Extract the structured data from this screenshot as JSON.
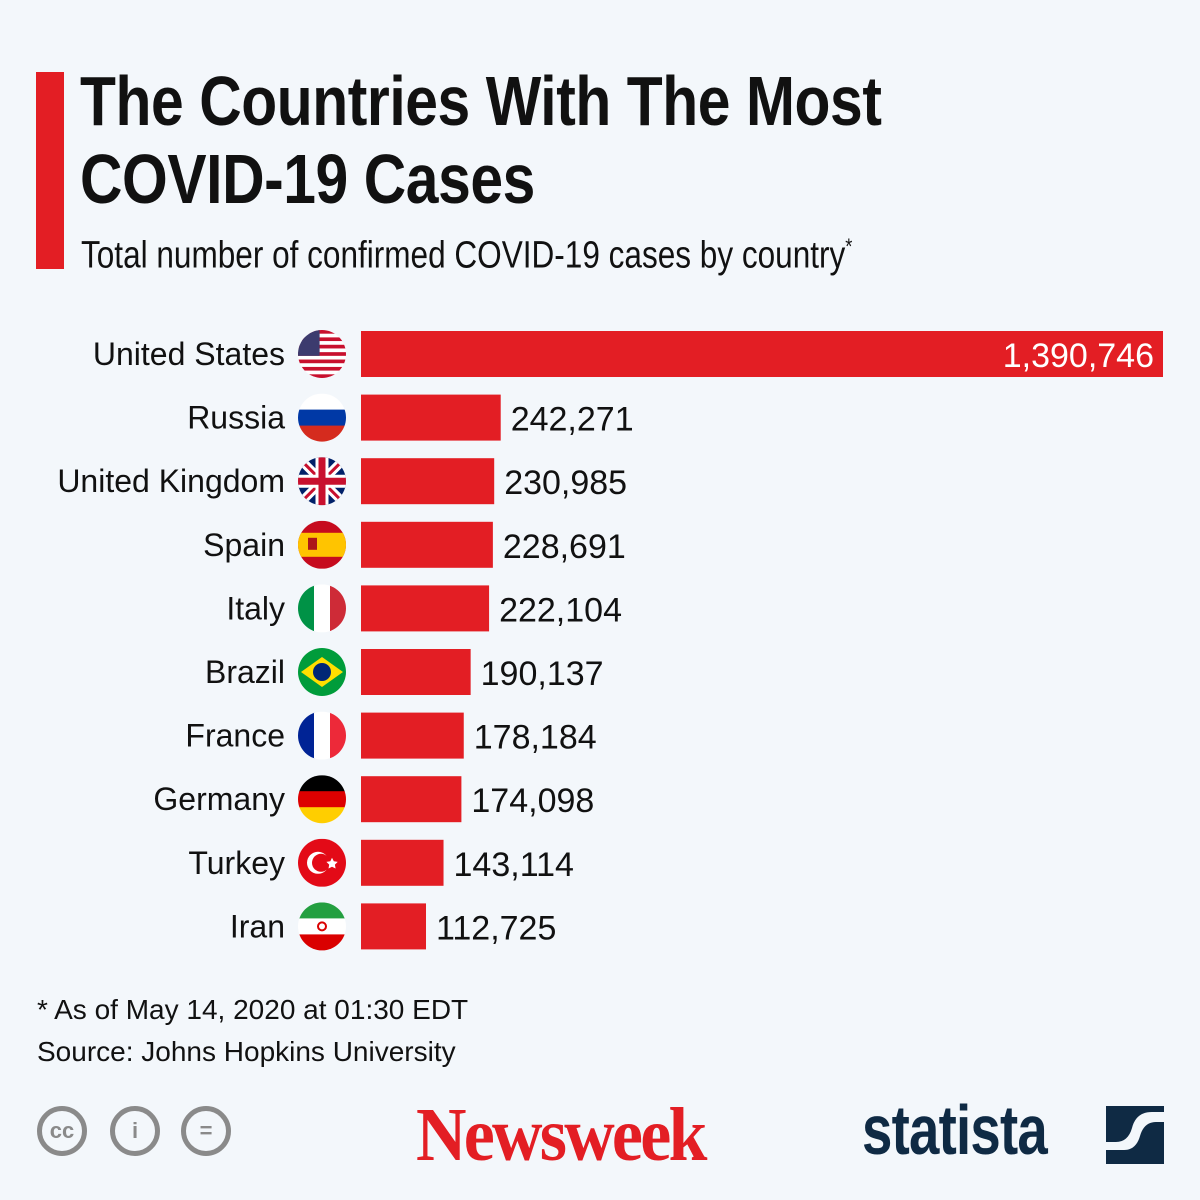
{
  "chart_data": {
    "type": "bar",
    "orientation": "horizontal",
    "title": "The Countries With The Most COVID-19 Cases",
    "subtitle": "Total number of confirmed COVID-19 cases by country",
    "subtitle_mark": "*",
    "categories": [
      "United States",
      "Russia",
      "United Kingdom",
      "Spain",
      "Italy",
      "Brazil",
      "France",
      "Germany",
      "Turkey",
      "Iran"
    ],
    "values": [
      1390746,
      242271,
      230985,
      228691,
      222104,
      190137,
      178184,
      174098,
      143114,
      112725
    ],
    "value_labels": [
      "1,390,746",
      "242,271",
      "230,985",
      "228,691",
      "222,104",
      "190,137",
      "178,184",
      "174,098",
      "143,114",
      "112,725"
    ],
    "flags": [
      "us-flag-icon",
      "russia-flag-icon",
      "uk-flag-icon",
      "spain-flag-icon",
      "italy-flag-icon",
      "brazil-flag-icon",
      "france-flag-icon",
      "germany-flag-icon",
      "turkey-flag-icon",
      "iran-flag-icon"
    ],
    "xlim": [
      0,
      1390746
    ],
    "grid": false,
    "bar_color": "#e31e24"
  },
  "footer": {
    "note": "* As of May 14, 2020 at 01:30 EDT",
    "source": "Source: Johns Hopkins University"
  },
  "license_icons": [
    "cc-icon",
    "attribution-icon",
    "no-derivatives-icon"
  ],
  "logos": {
    "newsweek": "Newsweek",
    "statista": "statista"
  },
  "colors": {
    "accent": "#e31e24",
    "background": "#f3f7fb",
    "statista": "#0f2a44",
    "license": "#8a8a8a"
  }
}
